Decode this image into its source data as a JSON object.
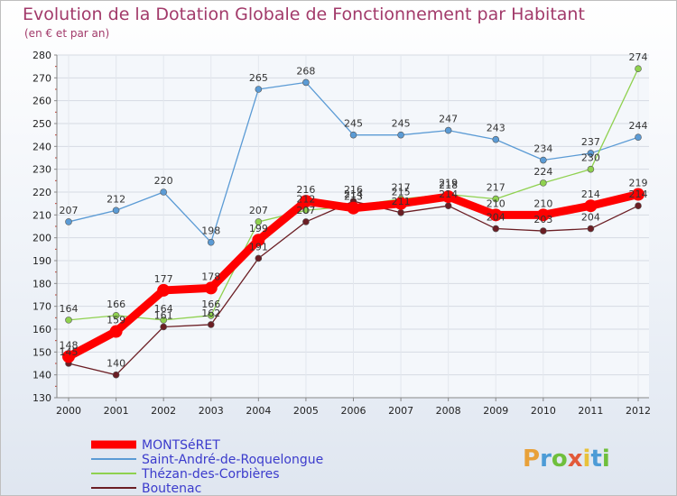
{
  "title": "Evolution de la Dotation Globale de Fonctionnement par Habitant",
  "subtitle": "(en € et par an)",
  "logo": {
    "text": "Proxiti",
    "letter_colors": [
      "#e8a13a",
      "#4c9bd6",
      "#6fbf3c",
      "#e25a3a",
      "#e8c23a",
      "#4c9bd6",
      "#6fbf3c"
    ]
  },
  "chart_data": {
    "type": "line",
    "x": [
      "2000",
      "2001",
      "2002",
      "2003",
      "2004",
      "2005",
      "2006",
      "2007",
      "2008",
      "2009",
      "2010",
      "2011",
      "2012"
    ],
    "ylim": [
      130,
      280
    ],
    "yticks": [
      130,
      140,
      150,
      160,
      170,
      180,
      190,
      200,
      210,
      220,
      230,
      240,
      250,
      260,
      270,
      280
    ],
    "grid": true,
    "legend_position": "bottom-left",
    "series": [
      {
        "name": "Saint-André-de-Roquelongue",
        "color": "#5b9bd5",
        "values": [
          207,
          212,
          220,
          198,
          265,
          268,
          245,
          245,
          247,
          243,
          234,
          237,
          244
        ]
      },
      {
        "name": "Thézan-des-Corbières",
        "color": "#8fd14f",
        "values": [
          164,
          166,
          164,
          166,
          207,
          212,
          214,
          217,
          219,
          217,
          224,
          230,
          274
        ]
      },
      {
        "name": "Boutenac",
        "color": "#6b1e24",
        "values": [
          145,
          140,
          161,
          162,
          191,
          207,
          216,
          211,
          214,
          204,
          203,
          204,
          214
        ]
      },
      {
        "name": "MONTSéRET",
        "color": "#ff0000",
        "values": [
          148,
          159,
          177,
          178,
          199,
          216,
          213,
          215,
          218,
          210,
          210,
          214,
          219
        ]
      }
    ],
    "legend_order": [
      "MONTSéRET",
      "Saint-André-de-Roquelongue",
      "Thézan-des-Corbières",
      "Boutenac"
    ]
  }
}
